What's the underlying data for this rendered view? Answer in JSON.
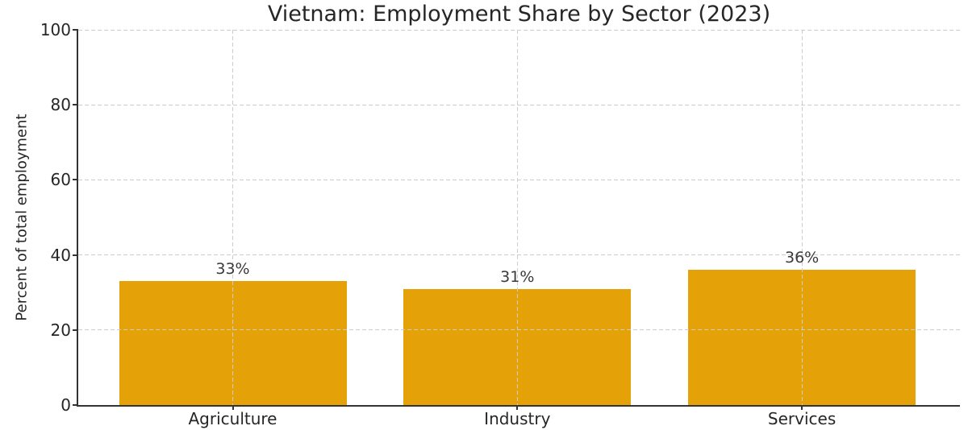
{
  "chart_data": {
    "type": "bar",
    "title": "Vietnam: Employment Share by Sector (2023)",
    "categories": [
      "Agriculture",
      "Industry",
      "Services"
    ],
    "values": [
      33,
      31,
      36
    ],
    "bar_labels": [
      "33%",
      "31%",
      "36%"
    ],
    "xlabel": "",
    "ylabel": "Percent of total employment",
    "ylim": [
      0,
      100
    ],
    "yticks": [
      0,
      20,
      40,
      60,
      80,
      100
    ],
    "grid": {
      "style": "dashed",
      "axes": "both",
      "drawn_above_bars": true
    },
    "legend": "none",
    "colors": {
      "bar": "#E5A208",
      "grid": "#CCCCCC",
      "axis": "#333333",
      "text": "#262626",
      "background": "#FFFFFF"
    }
  }
}
